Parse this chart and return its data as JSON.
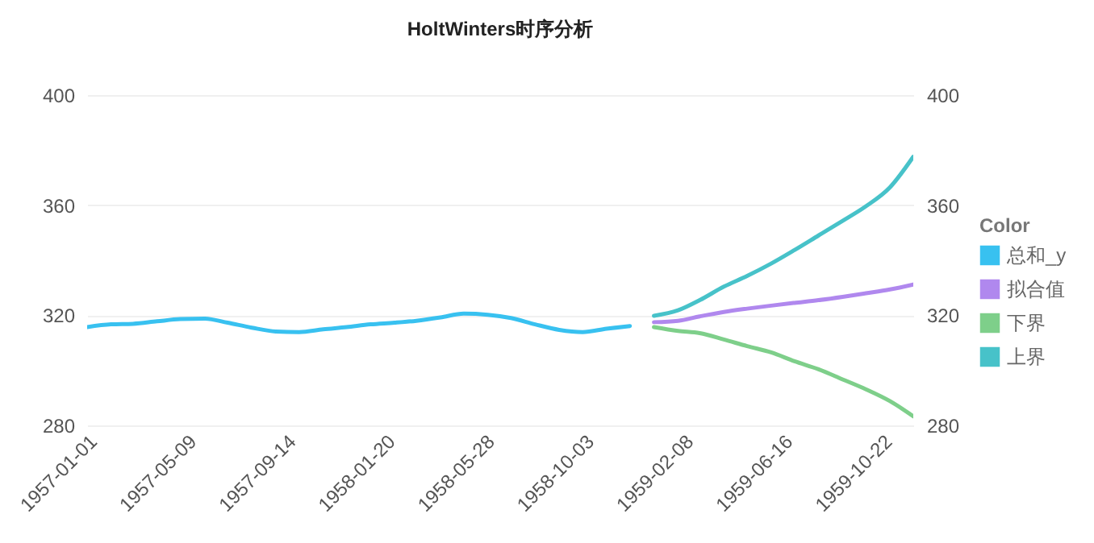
{
  "chart_data": {
    "type": "line",
    "title": "HoltWinters时序分析",
    "legend_title": "Color",
    "xlim": [
      "1957-01-01",
      "1959-12-01"
    ],
    "xticks": [
      "1957-01-01",
      "1957-05-09",
      "1957-09-14",
      "1958-01-20",
      "1958-05-28",
      "1958-10-03",
      "1959-02-08",
      "1959-06-16",
      "1959-10-22"
    ],
    "ylim": [
      280,
      400
    ],
    "yticks": [
      280,
      320,
      360,
      400
    ],
    "y2lim": [
      280,
      400
    ],
    "y2ticks": [
      280,
      320,
      360,
      400
    ],
    "grid": "y",
    "legend": "right",
    "marker": "none",
    "line_style": "solid",
    "series": [
      {
        "name": "总和_y",
        "color": "#38c1f0",
        "x": [
          "1957-01",
          "1957-02",
          "1957-03",
          "1957-04",
          "1957-05",
          "1957-06",
          "1957-07",
          "1957-08",
          "1957-09",
          "1957-10",
          "1957-11",
          "1957-12",
          "1958-01",
          "1958-02",
          "1958-03",
          "1958-04",
          "1958-05",
          "1958-06",
          "1958-07",
          "1958-08",
          "1958-09",
          "1958-10",
          "1958-11",
          "1958-12"
        ],
        "values": [
          315.7,
          316.7,
          316.9,
          317.8,
          318.6,
          318.8,
          317.3,
          315.5,
          314.1,
          313.9,
          314.9,
          315.7,
          316.7,
          317.3,
          318.0,
          319.2,
          320.6,
          320.2,
          319.0,
          316.7,
          314.7,
          313.9,
          315.1,
          316.1
        ]
      },
      {
        "name": "拟合值",
        "color": "#b088ee",
        "x": [
          "1959-01",
          "1959-02",
          "1959-03",
          "1959-04",
          "1959-05",
          "1959-06",
          "1959-07",
          "1959-08",
          "1959-09",
          "1959-10",
          "1959-11",
          "1959-12"
        ],
        "values": [
          317.5,
          318.0,
          319.6,
          321.2,
          322.4,
          323.5,
          324.5,
          325.5,
          326.7,
          328.0,
          329.4,
          331.2
        ]
      },
      {
        "name": "下界",
        "color": "#7ecf8a",
        "x": [
          "1959-01",
          "1959-02",
          "1959-03",
          "1959-04",
          "1959-05",
          "1959-06",
          "1959-07",
          "1959-08",
          "1959-09",
          "1959-10",
          "1959-11",
          "1959-12"
        ],
        "values": [
          315.7,
          314.3,
          313.5,
          311.2,
          308.8,
          306.5,
          303.3,
          300.4,
          296.7,
          293.1,
          288.8,
          283.3
        ]
      },
      {
        "name": "上界",
        "color": "#47c2c9",
        "x": [
          "1959-01",
          "1959-02",
          "1959-03",
          "1959-04",
          "1959-05",
          "1959-06",
          "1959-07",
          "1959-08",
          "1959-09",
          "1959-10",
          "1959-11",
          "1959-12"
        ],
        "values": [
          319.8,
          321.8,
          325.5,
          330.4,
          334.3,
          338.8,
          343.7,
          349.0,
          354.3,
          359.6,
          366.5,
          377.6
        ]
      }
    ]
  }
}
